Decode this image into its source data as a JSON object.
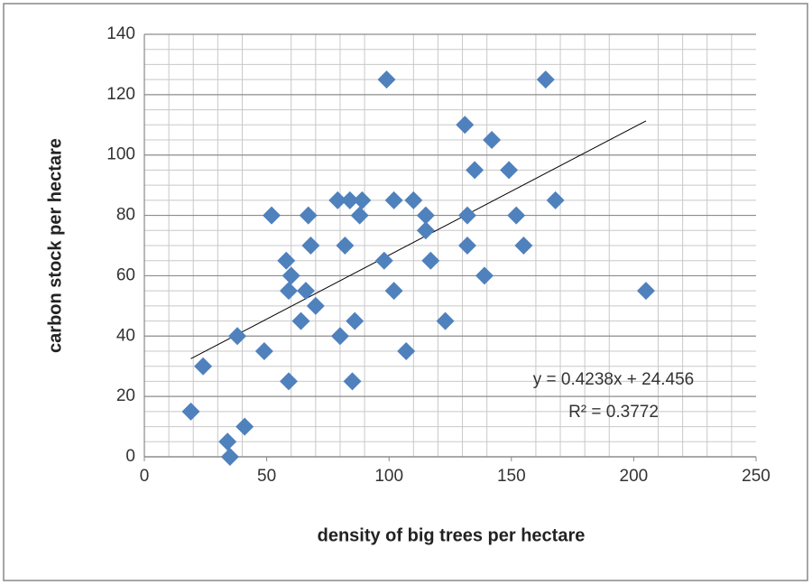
{
  "chart_data": {
    "type": "scatter",
    "xlabel": "density of big trees per hectare",
    "ylabel": "carbon stock per hectare",
    "x": [
      99,
      164,
      131,
      142,
      135,
      149,
      168,
      79,
      84,
      89,
      102,
      110,
      115,
      132,
      152,
      52,
      67,
      88,
      115,
      68,
      82,
      132,
      155,
      58,
      98,
      117,
      60,
      139,
      59,
      66,
      102,
      205,
      70,
      64,
      86,
      123,
      38,
      80,
      49,
      107,
      24,
      59,
      85,
      19,
      41,
      34,
      35
    ],
    "values": [
      125,
      125,
      110,
      105,
      95,
      95,
      85,
      85,
      85,
      85,
      85,
      85,
      80,
      80,
      80,
      80,
      80,
      80,
      75,
      70,
      70,
      70,
      70,
      65,
      65,
      65,
      60,
      60,
      55,
      55,
      55,
      55,
      50,
      45,
      45,
      45,
      40,
      40,
      35,
      35,
      30,
      25,
      25,
      15,
      10,
      5,
      0
    ],
    "color": "#4f81bd",
    "trendline": {
      "x": [
        19,
        205
      ],
      "values": [
        32.5,
        111.3
      ],
      "color": "#000000"
    },
    "annotations": [
      "y = 0.4238x + 24.456",
      "R² = 0.3772"
    ],
    "xlim": [
      0,
      250
    ],
    "xticks": [
      0,
      50,
      100,
      150,
      200,
      250
    ],
    "ylim": [
      0,
      140
    ],
    "yticks": [
      0,
      20,
      40,
      60,
      80,
      100,
      120,
      140
    ],
    "grid": true,
    "minor_grid": true
  }
}
